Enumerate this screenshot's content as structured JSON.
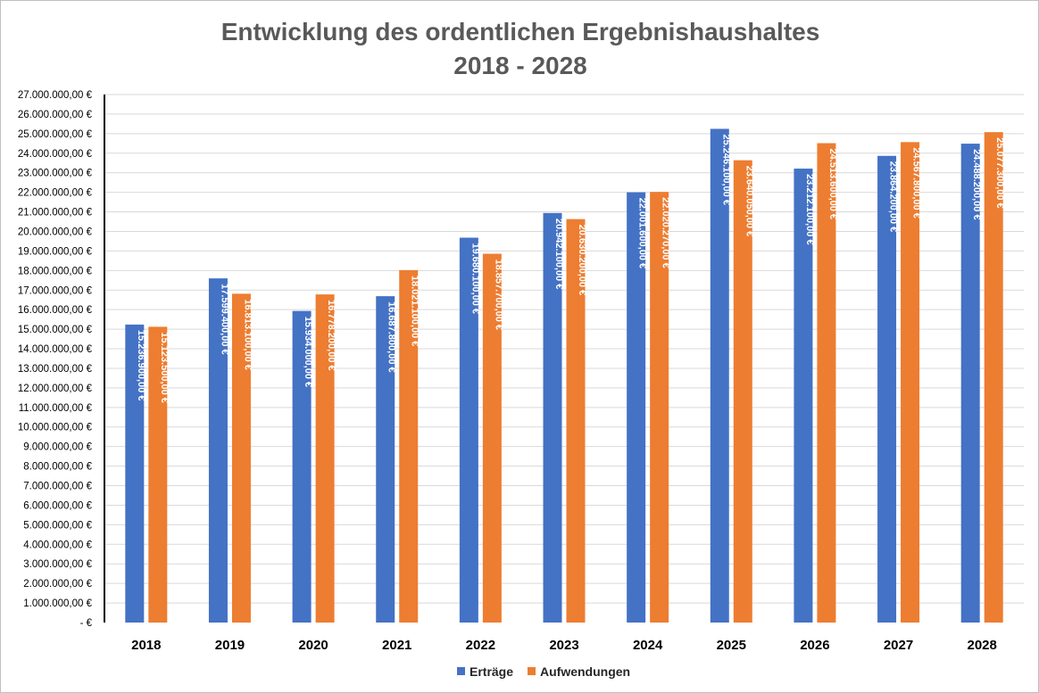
{
  "chart_data": {
    "type": "bar",
    "title": "Entwicklung des ordentlichen Ergebnishaushaltes",
    "subtitle": "2018 - 2028",
    "xlabel": "",
    "ylabel": "",
    "ylim": [
      0,
      27000000
    ],
    "ytick_step": 1000000,
    "grid": true,
    "legend_position": "bottom",
    "categories": [
      "2018",
      "2019",
      "2020",
      "2021",
      "2022",
      "2023",
      "2024",
      "2025",
      "2026",
      "2027",
      "2028"
    ],
    "series": [
      {
        "name": "Erträge",
        "color": "#4472c4",
        "values": [
          15236900,
          17599400,
          15934000,
          16687800,
          19680100,
          20942100,
          22001600,
          25246100,
          23212100,
          23864200,
          24488200
        ],
        "labels": [
          "15.236.900,00 €",
          "17.599.400,00 €",
          "15.934.000,00 €",
          "16.687.800,00 €",
          "19.680.100,00 €",
          "20.942.100,00 €",
          "22.001.600,00 €",
          "25.246.100,00 €",
          "23.212.100,00 €",
          "23.864.200,00 €",
          "24.488.200,00 €"
        ]
      },
      {
        "name": "Aufwendungen",
        "color": "#ed7d31",
        "values": [
          15123500,
          16813100,
          16778200,
          18021100,
          18857700,
          20630200,
          22020270,
          23640050,
          24513600,
          24567800,
          25077300
        ],
        "labels": [
          "15.123.500,00 €",
          "16.813.100,00 €",
          "16.778.200,00 €",
          "18.021.100,00 €",
          "18.857.700,00 €",
          "20.630.200,00 €",
          "22.020.270,00 €",
          "23.640.050,00 €",
          "24.513.600,00 €",
          "24.567.800,00 €",
          "25.077.300,00 €"
        ]
      }
    ],
    "ytick_labels": [
      "-  €",
      "1.000.000,00 €",
      "2.000.000,00 €",
      "3.000.000,00 €",
      "4.000.000,00 €",
      "5.000.000,00 €",
      "6.000.000,00 €",
      "7.000.000,00 €",
      "8.000.000,00 €",
      "9.000.000,00 €",
      "10.000.000,00 €",
      "11.000.000,00 €",
      "12.000.000,00 €",
      "13.000.000,00 €",
      "14.000.000,00 €",
      "15.000.000,00 €",
      "16.000.000,00 €",
      "17.000.000,00 €",
      "18.000.000,00 €",
      "19.000.000,00 €",
      "20.000.000,00 €",
      "21.000.000,00 €",
      "22.000.000,00 €",
      "23.000.000,00 €",
      "24.000.000,00 €",
      "25.000.000,00 €",
      "26.000.000,00 €",
      "27.000.000,00 €"
    ]
  }
}
